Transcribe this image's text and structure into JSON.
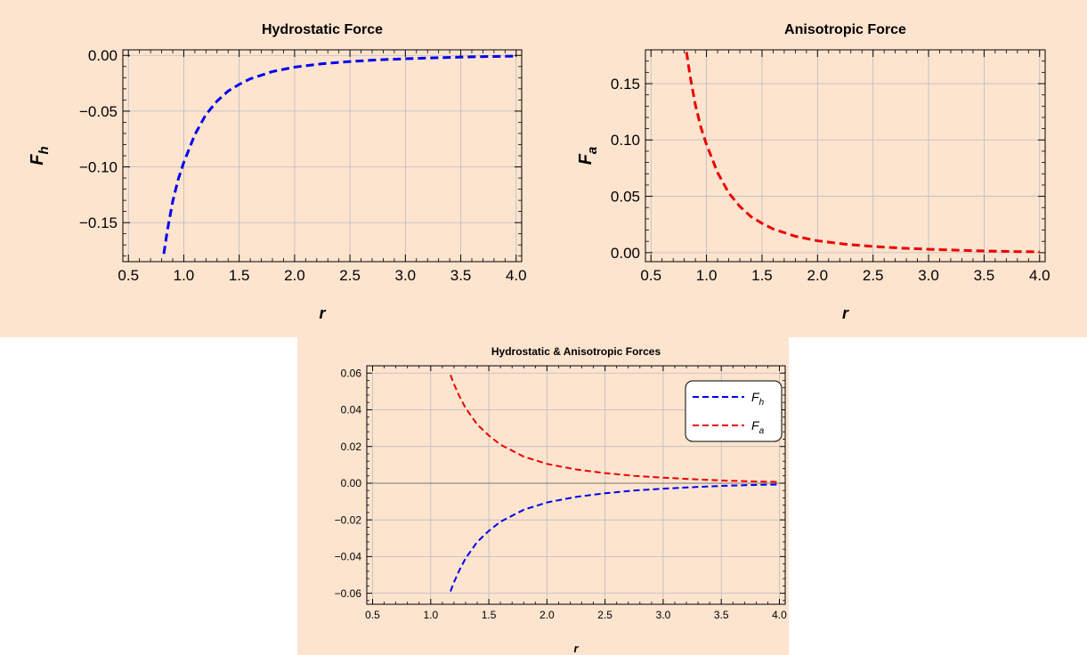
{
  "chart_data": [
    {
      "type": "line",
      "title": "Hydrostatic Force",
      "xlabel": "r",
      "ylabel": "F",
      "ylabel_sub": "h",
      "xlim": [
        0.45,
        4.05
      ],
      "ylim": [
        -0.185,
        0.005
      ],
      "xticks": [
        "0.5",
        "1.0",
        "1.5",
        "2.0",
        "2.5",
        "3.0",
        "3.5",
        "4.0"
      ],
      "xtick_values": [
        0.5,
        1.0,
        1.5,
        2.0,
        2.5,
        3.0,
        3.5,
        4.0
      ],
      "yticks": [
        "0.00",
        "−0.05",
        "−0.10",
        "−0.15"
      ],
      "ytick_values": [
        0.0,
        -0.05,
        -0.1,
        -0.15
      ],
      "grid": true,
      "series": [
        {
          "color": "#0000ee",
          "dash": "dashed",
          "x": [
            0.82,
            0.85,
            0.9,
            0.95,
            1.0,
            1.1,
            1.2,
            1.3,
            1.4,
            1.5,
            1.6,
            1.8,
            2.0,
            2.25,
            2.5,
            2.75,
            3.0,
            3.25,
            3.5,
            3.75,
            4.0
          ],
          "y": [
            -0.178,
            -0.158,
            -0.131,
            -0.111,
            -0.096,
            -0.071,
            -0.053,
            -0.041,
            -0.032,
            -0.026,
            -0.021,
            -0.0145,
            -0.0105,
            -0.0075,
            -0.0055,
            -0.004,
            -0.003,
            -0.0022,
            -0.0015,
            -0.001,
            -0.0007
          ]
        }
      ]
    },
    {
      "type": "line",
      "title": "Anisotropic Force",
      "xlabel": "r",
      "ylabel": "F",
      "ylabel_sub": "a",
      "xlim": [
        0.45,
        4.05
      ],
      "ylim": [
        -0.008,
        0.18
      ],
      "xticks": [
        "0.5",
        "1.0",
        "1.5",
        "2.0",
        "2.5",
        "3.0",
        "3.5",
        "4.0"
      ],
      "xtick_values": [
        0.5,
        1.0,
        1.5,
        2.0,
        2.5,
        3.0,
        3.5,
        4.0
      ],
      "yticks": [
        "0.00",
        "0.05",
        "0.10",
        "0.15"
      ],
      "ytick_values": [
        0.0,
        0.05,
        0.1,
        0.15
      ],
      "grid": true,
      "series": [
        {
          "color": "#ee0000",
          "dash": "dashed",
          "x": [
            0.82,
            0.85,
            0.9,
            0.95,
            1.0,
            1.1,
            1.2,
            1.3,
            1.4,
            1.5,
            1.6,
            1.8,
            2.0,
            2.25,
            2.5,
            2.75,
            3.0,
            3.25,
            3.5,
            3.75,
            4.0
          ],
          "y": [
            0.178,
            0.158,
            0.131,
            0.111,
            0.096,
            0.071,
            0.053,
            0.041,
            0.032,
            0.026,
            0.021,
            0.0145,
            0.0105,
            0.0075,
            0.0055,
            0.004,
            0.003,
            0.0022,
            0.0015,
            0.001,
            0.0007
          ]
        }
      ]
    },
    {
      "type": "line",
      "title": "Hydrostatic & Anisotropic Forces",
      "xlabel": "r",
      "ylabel": "",
      "xlim": [
        0.45,
        4.05
      ],
      "ylim": [
        -0.066,
        0.064
      ],
      "xticks": [
        "0.5",
        "1.0",
        "1.5",
        "2.0",
        "2.5",
        "3.0",
        "3.5",
        "4.0"
      ],
      "xtick_values": [
        0.5,
        1.0,
        1.5,
        2.0,
        2.5,
        3.0,
        3.5,
        4.0
      ],
      "yticks": [
        "0.06",
        "0.04",
        "0.02",
        "0.00",
        "−0.02",
        "−0.04",
        "−0.06"
      ],
      "ytick_values": [
        0.06,
        0.04,
        0.02,
        0.0,
        -0.02,
        -0.04,
        -0.06
      ],
      "grid": true,
      "zero_line": true,
      "legend": "top-right",
      "series": [
        {
          "name": "F",
          "name_sub": "h",
          "color": "#0000ee",
          "dash": "dashed",
          "x": [
            1.17,
            1.2,
            1.25,
            1.3,
            1.4,
            1.5,
            1.6,
            1.8,
            2.0,
            2.25,
            2.5,
            2.75,
            3.0,
            3.25,
            3.5,
            3.75,
            4.0
          ],
          "y": [
            -0.059,
            -0.054,
            -0.047,
            -0.041,
            -0.032,
            -0.026,
            -0.021,
            -0.0145,
            -0.0105,
            -0.0075,
            -0.0055,
            -0.004,
            -0.003,
            -0.0022,
            -0.0015,
            -0.001,
            -0.0007
          ]
        },
        {
          "name": "F",
          "name_sub": "a",
          "color": "#ee0000",
          "dash": "dashed",
          "x": [
            1.17,
            1.2,
            1.25,
            1.3,
            1.4,
            1.5,
            1.6,
            1.8,
            2.0,
            2.25,
            2.5,
            2.75,
            3.0,
            3.25,
            3.5,
            3.75,
            4.0
          ],
          "y": [
            0.059,
            0.054,
            0.047,
            0.041,
            0.032,
            0.026,
            0.021,
            0.0145,
            0.0105,
            0.0075,
            0.0055,
            0.004,
            0.003,
            0.0022,
            0.0015,
            0.001,
            0.0007
          ]
        }
      ]
    }
  ]
}
